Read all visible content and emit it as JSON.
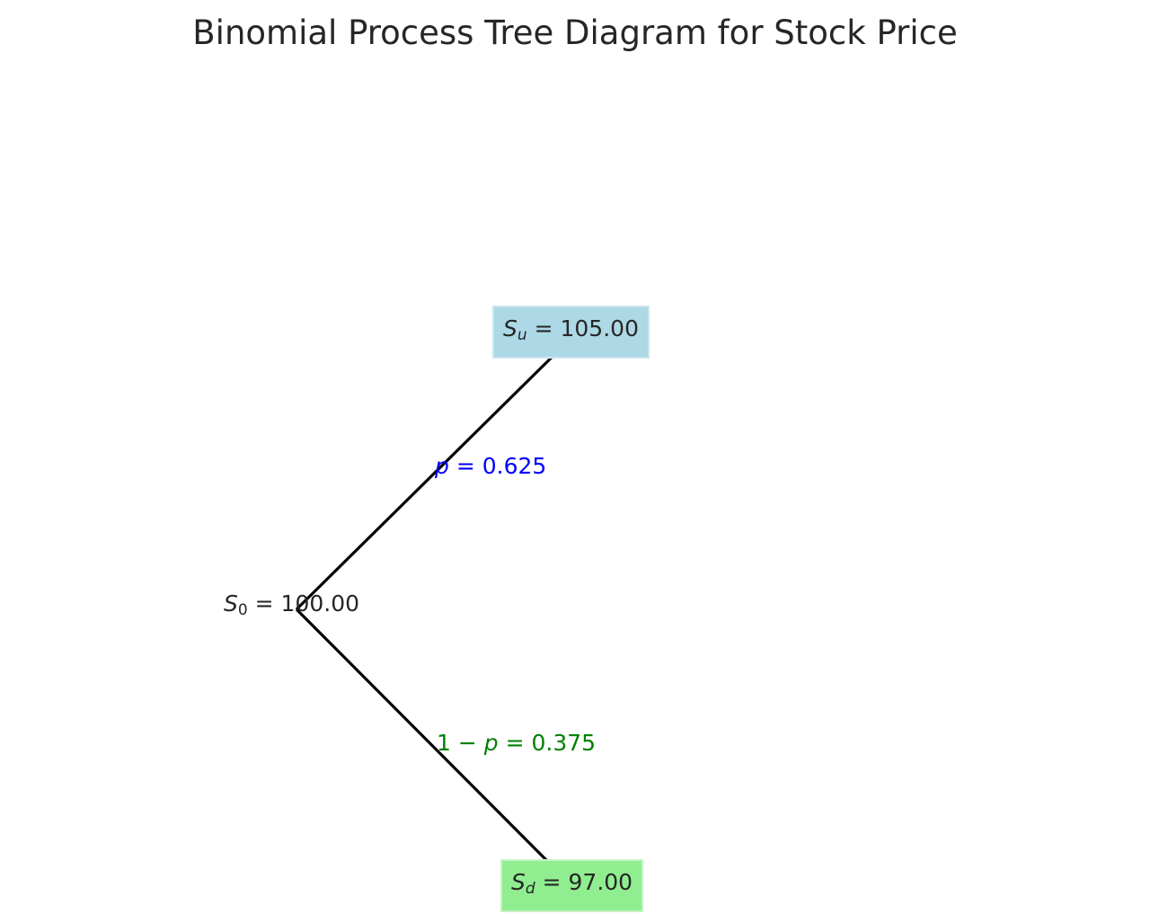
{
  "title": "Binomial Process Tree Diagram for Stock Price",
  "nodes": {
    "root": {
      "symbol": "S",
      "subscript": "0",
      "value": "100.00"
    },
    "up": {
      "symbol": "S",
      "subscript": "u",
      "value": "105.00"
    },
    "down": {
      "symbol": "S",
      "subscript": "d",
      "value": "97.00"
    }
  },
  "probabilities": {
    "up": {
      "prefix": "",
      "symbol": "p",
      "value": "0.625"
    },
    "down": {
      "prefix": "1 − ",
      "symbol": "p",
      "value": "0.375"
    }
  },
  "colors": {
    "up_node_fill": "#add8e6",
    "down_node_fill": "#90ee90",
    "edge": "#000000",
    "up_prob_text": "#0000ff",
    "down_prob_text": "#008000"
  }
}
